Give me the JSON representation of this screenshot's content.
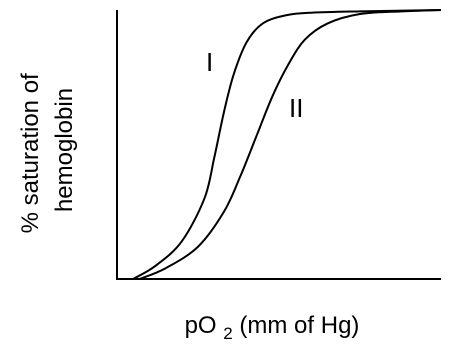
{
  "chart_data": {
    "type": "line",
    "title": "",
    "xlabel": {
      "prefix": "pO",
      "subscript": "2",
      "suffix": " (mm of Hg)"
    },
    "ylabel": {
      "line1": "% saturation of",
      "line2": "hemoglobin"
    },
    "xlim": [
      0,
      100
    ],
    "ylim": [
      0,
      100
    ],
    "grid": false,
    "series": [
      {
        "name": "I",
        "x": [
          5,
          12,
          20,
          27,
          30,
          33,
          36,
          40,
          45,
          52,
          60,
          75,
          100
        ],
        "y": [
          0,
          5,
          14,
          30,
          45,
          62,
          76,
          88,
          95,
          98,
          99,
          99.5,
          100
        ]
      },
      {
        "name": "II",
        "x": [
          7,
          15,
          25,
          33,
          38,
          43,
          48,
          53,
          58,
          65,
          75,
          88,
          100
        ],
        "y": [
          0,
          4,
          12,
          25,
          38,
          53,
          68,
          80,
          89,
          95,
          98.5,
          99.5,
          100
        ]
      }
    ]
  }
}
